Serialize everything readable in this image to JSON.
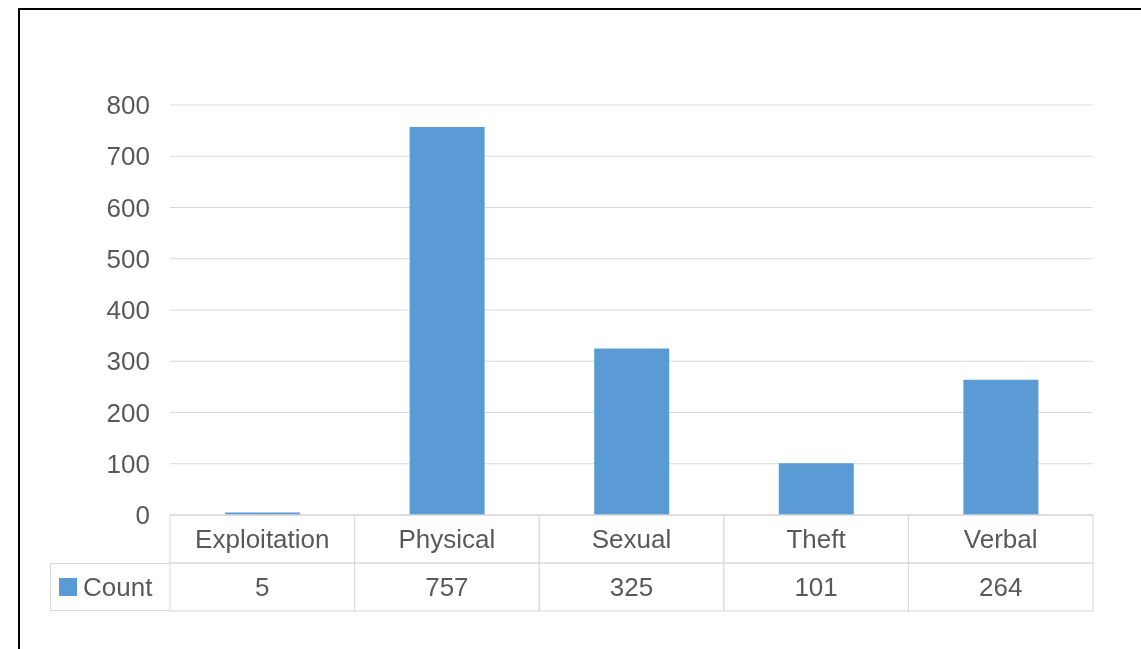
{
  "chart_data": {
    "type": "bar",
    "categories": [
      "Exploitation",
      "Physical",
      "Sexual",
      "Theft",
      "Verbal"
    ],
    "series": [
      {
        "name": "Count",
        "color": "#5b9bd5",
        "values": [
          5,
          757,
          325,
          101,
          264
        ]
      }
    ],
    "ylim": [
      0,
      800
    ],
    "yticks": [
      0,
      100,
      200,
      300,
      400,
      500,
      600,
      700,
      800
    ],
    "grid": "y",
    "legend": "bottom",
    "data_labels": true
  }
}
